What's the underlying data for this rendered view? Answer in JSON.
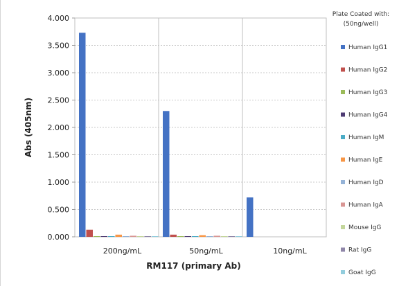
{
  "chart_data": {
    "type": "bar",
    "title": "",
    "xlabel": "RM117 (primary Ab)",
    "ylabel": "Abs (405nm)",
    "ylim": [
      0,
      4.0
    ],
    "ytick_step": 0.5,
    "ytick_labels": [
      "0.000",
      "0.500",
      "1.000",
      "1.500",
      "2.000",
      "2.500",
      "3.000",
      "3.500",
      "4.000"
    ],
    "grid": true,
    "legend_position": "right",
    "legend_title": [
      "Plate Coated with:",
      "(50ng/well)"
    ],
    "categories": [
      "200ng/mL",
      "50ng/mL",
      "10ng/mL"
    ],
    "series": [
      {
        "name": "Human IgG1",
        "color": "#4472c4",
        "values": [
          3.73,
          2.3,
          0.72
        ]
      },
      {
        "name": "Human IgG2",
        "color": "#c0504d",
        "values": [
          0.13,
          0.04,
          0.0
        ]
      },
      {
        "name": "Human IgG3",
        "color": "#9bbb59",
        "values": [
          0.01,
          0.01,
          0.0
        ]
      },
      {
        "name": "Human IgG4",
        "color": "#4e3b73",
        "values": [
          0.01,
          0.01,
          0.0
        ]
      },
      {
        "name": "Human IgM",
        "color": "#4bacc6",
        "values": [
          0.01,
          0.01,
          0.0
        ]
      },
      {
        "name": "Human IgE",
        "color": "#f79646",
        "values": [
          0.04,
          0.03,
          0.0
        ]
      },
      {
        "name": "Human IgD",
        "color": "#95b3d7",
        "values": [
          0.01,
          0.01,
          0.0
        ]
      },
      {
        "name": "Human IgA",
        "color": "#d99694",
        "values": [
          0.02,
          0.02,
          0.0
        ]
      },
      {
        "name": "Mouse IgG",
        "color": "#c3d69b",
        "values": [
          0.01,
          0.01,
          0.0
        ]
      },
      {
        "name": "Rat IgG",
        "color": "#8f86a8",
        "values": [
          0.01,
          0.01,
          0.0
        ]
      },
      {
        "name": "Goat IgG",
        "color": "#93cddd",
        "values": [
          0.01,
          0.01,
          0.0
        ]
      }
    ]
  }
}
